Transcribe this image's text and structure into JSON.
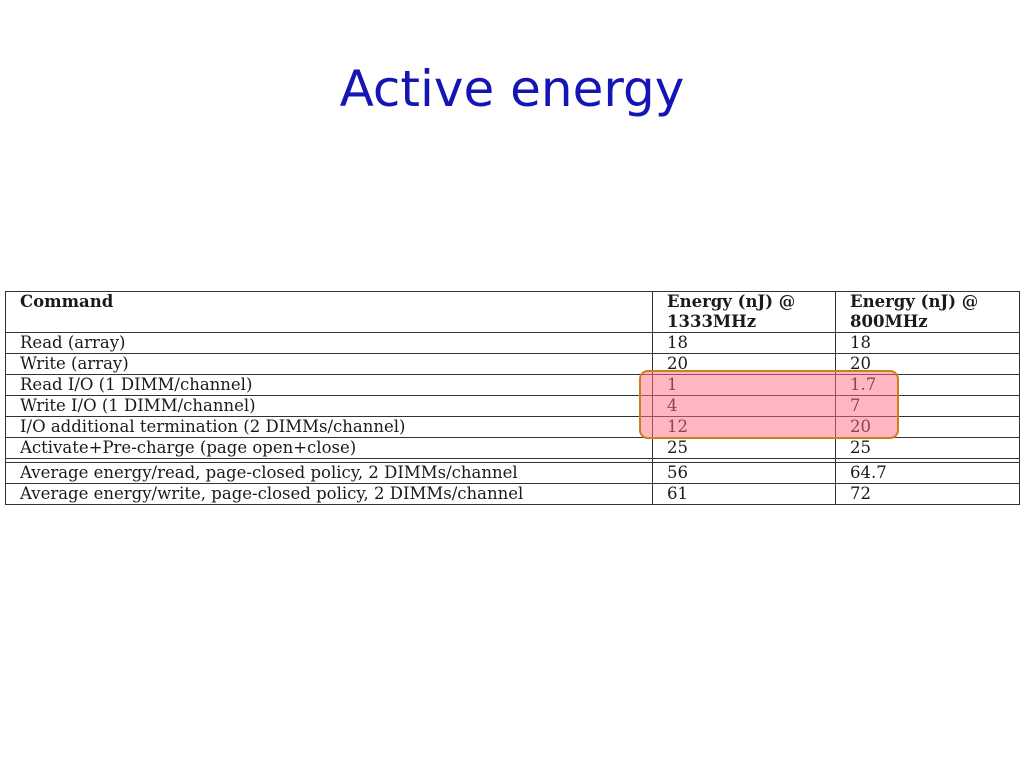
{
  "slide": {
    "title": "Active energy"
  },
  "table": {
    "headers": {
      "command": "Command",
      "col_1333_line1": "Energy (nJ) @",
      "col_1333_line2": "1333MHz",
      "col_800_line1": "Energy (nJ) @",
      "col_800_line2": "800MHz"
    },
    "rows": [
      {
        "command": "Read (array)",
        "e1333": "18",
        "e800": "18"
      },
      {
        "command": "Write (array)",
        "e1333": "20",
        "e800": "20"
      },
      {
        "command": "Read I/O (1 DIMM/channel)",
        "e1333": "1",
        "e800": "1.7"
      },
      {
        "command": "Write I/O (1 DIMM/channel)",
        "e1333": "4",
        "e800": "7"
      },
      {
        "command": "I/O additional termination (2 DIMMs/channel)",
        "e1333": "12",
        "e800": "20"
      },
      {
        "command": "Activate+Pre-charge (page open+close)",
        "e1333": "25",
        "e800": "25"
      }
    ],
    "summary_rows": [
      {
        "command": "Average energy/read, page-closed policy, 2 DIMMs/channel",
        "e1333": "56",
        "e800": "64.7"
      },
      {
        "command": "Average energy/write, page-closed policy, 2 DIMMs/channel",
        "e1333": "61",
        "e800": "72"
      }
    ]
  },
  "highlight": {
    "fill_color": "#ff6e82",
    "border_color": "#c98020"
  }
}
